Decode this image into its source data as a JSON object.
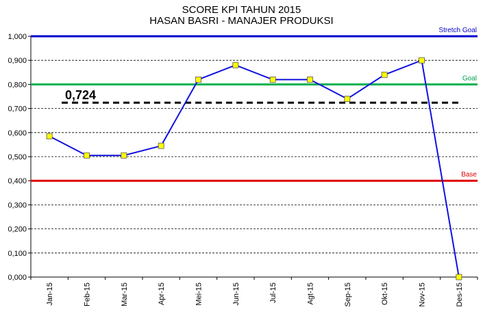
{
  "chart_data": {
    "type": "line",
    "title": "SCORE KPI TAHUN  2015",
    "subtitle": "HASAN  BASRI - MANAJER  PRODUKSI",
    "categories": [
      "Jan-15",
      "Feb-15",
      "Mar-15",
      "Apr-15",
      "Mei-15",
      "Jun-15",
      "Jul-15",
      "Agt-15",
      "Sep-15",
      "Okt-15",
      "Nov-15",
      "Des-15"
    ],
    "series": [
      {
        "values": [
          0.585,
          0.505,
          0.505,
          0.545,
          0.82,
          0.88,
          0.82,
          0.82,
          0.74,
          0.84,
          0.9,
          0.0
        ],
        "color": "#1010e0",
        "marker_fill": "#ffff00"
      }
    ],
    "reference_lines": [
      {
        "label": "Stretch Goal",
        "value": 1.0,
        "color": "#0000cc",
        "label_color": "#0000cc"
      },
      {
        "label": "Goal",
        "value": 0.8,
        "color": "#00b050",
        "label_color": "#00a050"
      },
      {
        "label": "Base",
        "value": 0.4,
        "color": "#e00000",
        "label_color": "#e00000"
      }
    ],
    "average": {
      "value": 0.724,
      "label": "0,724",
      "color": "#000000"
    },
    "ylim": [
      0,
      1.0
    ],
    "yticks": [
      "0,000",
      "0,100",
      "0,200",
      "0,300",
      "0,400",
      "0,500",
      "0,600",
      "0,700",
      "0,800",
      "0,900",
      "1,000"
    ],
    "grid": true,
    "xlabel": "",
    "ylabel": ""
  }
}
